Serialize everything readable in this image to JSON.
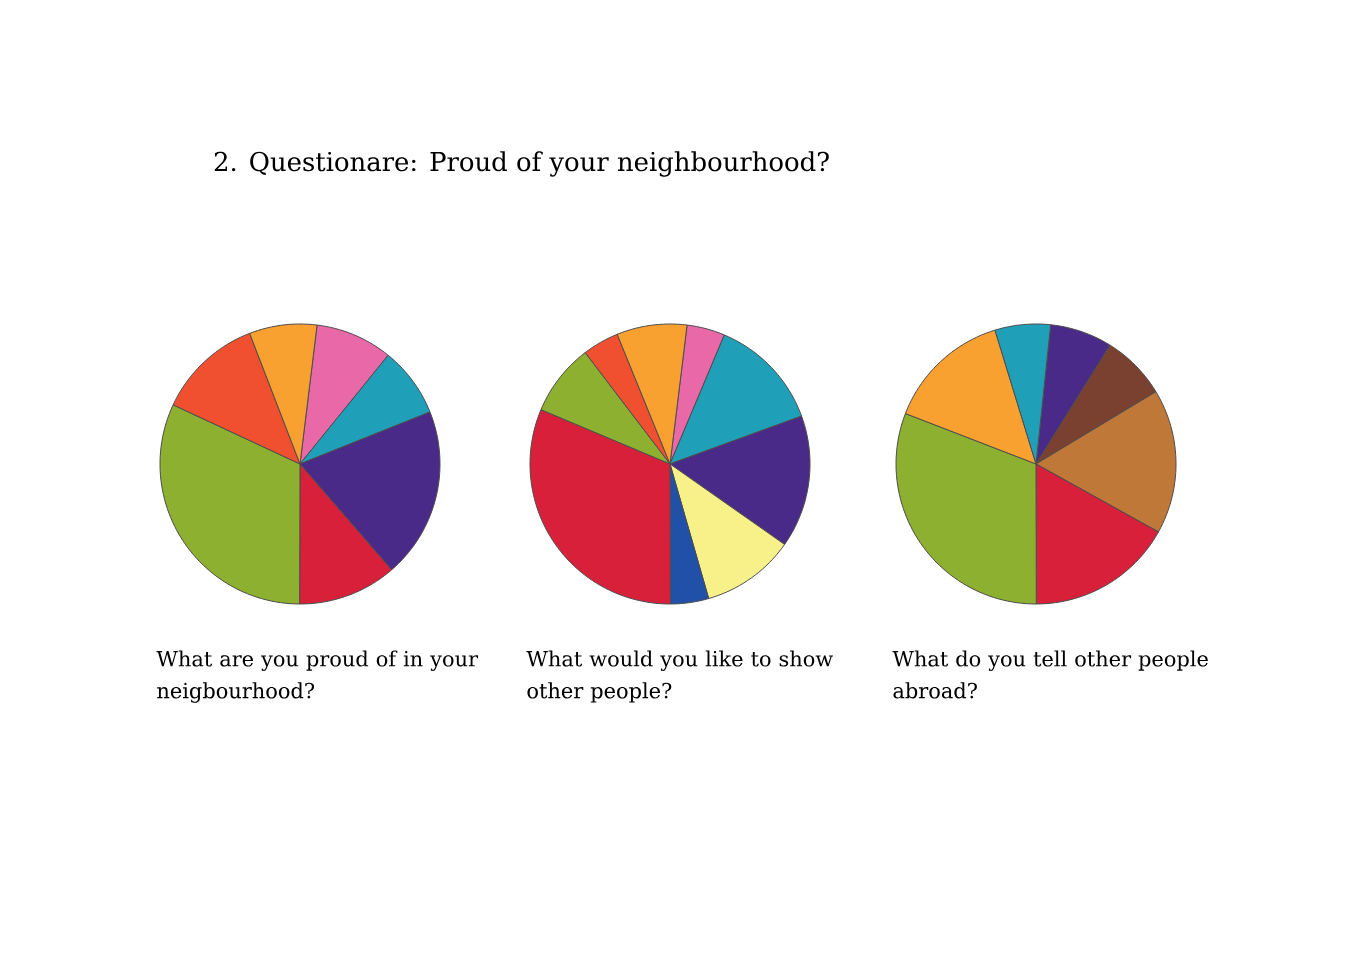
{
  "chart_data": [
    {
      "type": "pie",
      "title": "2. Questionare: Proud of your neighbourhood?",
      "xlabel": "What are you proud of in your neigbourhood?",
      "categories": [
        null,
        null,
        null,
        null,
        null,
        null,
        null
      ],
      "values": [
        8.9,
        8.1,
        19.7,
        11.4,
        31.9,
        12.2,
        7.8
      ],
      "colors": [
        "#e868a8",
        "#20a0b8",
        "#4a2a88",
        "#d8203a",
        "#8db030",
        "#f05030",
        "#f8a030"
      ]
    },
    {
      "type": "pie",
      "xlabel": "What would you like to show other people?",
      "categories": [
        null,
        null,
        null,
        null,
        null,
        null,
        null,
        null,
        null
      ],
      "values": [
        4.4,
        13.1,
        15.3,
        10.8,
        4.4,
        31.4,
        8.3,
        4.2,
        8.1
      ],
      "colors": [
        "#e868a8",
        "#20a0b8",
        "#4a2a88",
        "#f8f088",
        "#2050a8",
        "#d8203a",
        "#8db030",
        "#f05030",
        "#f8a030"
      ]
    },
    {
      "type": "pie",
      "xlabel": "What do you tell other people abroad?",
      "categories": [
        null,
        null,
        null,
        null,
        null,
        null,
        null
      ],
      "values": [
        7.2,
        7.5,
        16.7,
        16.9,
        30.9,
        14.4,
        6.4
      ],
      "colors": [
        "#4a2a88",
        "#7a4030",
        "#c07838",
        "#d8203a",
        "#8db030",
        "#f8a030",
        "#20a0b8"
      ]
    }
  ]
}
